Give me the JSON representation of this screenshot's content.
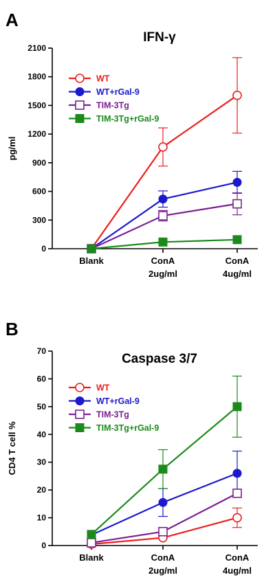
{
  "chart_data": [
    {
      "panel": "A",
      "type": "line",
      "title": "IFN-γ",
      "ylabel": "pg/ml",
      "xlabel": "",
      "categories": [
        [
          "Blank"
        ],
        [
          "ConA",
          "2ug/ml"
        ],
        [
          "ConA",
          "4ug/ml"
        ]
      ],
      "ylim": [
        0,
        2100
      ],
      "yticks": [
        0,
        300,
        600,
        900,
        1200,
        1500,
        1800,
        2100
      ],
      "grid": false,
      "legend_position": "top-left",
      "series": [
        {
          "name": "WT",
          "color": "#ee1c1c",
          "marker": "open-circle",
          "values": [
            0,
            1065,
            1605
          ],
          "errors": [
            0,
            200,
            395
          ]
        },
        {
          "name": "WT+rGal-9",
          "color": "#1a1acc",
          "marker": "filled-circle",
          "values": [
            0,
            520,
            695
          ],
          "errors": [
            0,
            85,
            115
          ]
        },
        {
          "name": "TIM-3Tg",
          "color": "#7b1f93",
          "marker": "open-square",
          "values": [
            0,
            345,
            470
          ],
          "errors": [
            0,
            55,
            115
          ]
        },
        {
          "name": "TIM-3Tg+rGal-9",
          "color": "#1b8a1b",
          "marker": "filled-square",
          "values": [
            0,
            70,
            95
          ],
          "errors": [
            0,
            0,
            0
          ]
        }
      ]
    },
    {
      "panel": "B",
      "type": "line",
      "title": "Caspase 3/7",
      "ylabel": "CD4 T cell %",
      "xlabel": "",
      "categories": [
        [
          "Blank"
        ],
        [
          "ConA",
          "2ug/ml"
        ],
        [
          "ConA",
          "4ug/ml"
        ]
      ],
      "ylim": [
        0,
        70
      ],
      "yticks": [
        0,
        10,
        20,
        30,
        40,
        50,
        60,
        70
      ],
      "grid": false,
      "legend_position": "top-left",
      "series": [
        {
          "name": "WT",
          "color": "#ee1c1c",
          "marker": "open-circle",
          "values": [
            0.5,
            2.8,
            10
          ],
          "errors": [
            0,
            0,
            3.5
          ]
        },
        {
          "name": "WT+rGal-9",
          "color": "#1a1acc",
          "marker": "filled-circle",
          "values": [
            3.8,
            15.5,
            26
          ],
          "errors": [
            0,
            5,
            8
          ]
        },
        {
          "name": "TIM-3Tg",
          "color": "#7b1f93",
          "marker": "open-square",
          "values": [
            1,
            5,
            18.8
          ],
          "errors": [
            0,
            0,
            0
          ]
        },
        {
          "name": "TIM-3Tg+rGal-9",
          "color": "#1b8a1b",
          "marker": "filled-square",
          "values": [
            4,
            27.5,
            50
          ],
          "errors": [
            0,
            7,
            11
          ]
        }
      ]
    }
  ]
}
